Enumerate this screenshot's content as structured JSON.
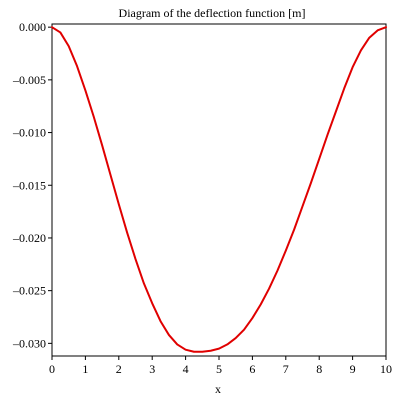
{
  "chart_data": {
    "type": "line",
    "title": "Diagram of the deflection function [m]",
    "xlabel": "x",
    "ylabel": "",
    "xlim": [
      0,
      10
    ],
    "ylim": [
      -0.0312,
      0.0003
    ],
    "x_ticks": [
      0,
      1,
      2,
      3,
      4,
      5,
      6,
      7,
      8,
      9,
      10
    ],
    "x_tick_labels": [
      "0",
      "1",
      "2",
      "3",
      "4",
      "5",
      "6",
      "7",
      "8",
      "9",
      "10"
    ],
    "y_ticks": [
      0.0,
      -0.005,
      -0.01,
      -0.015,
      -0.02,
      -0.025,
      -0.03
    ],
    "y_tick_labels": [
      "0.000",
      "–0.005",
      "–0.010",
      "–0.015",
      "–0.020",
      "–0.025",
      "–0.030"
    ],
    "grid": false,
    "legend": "none",
    "series": [
      {
        "color": "#e00000",
        "x": [
          0,
          0.25,
          0.5,
          0.75,
          1.0,
          1.25,
          1.5,
          1.75,
          2.0,
          2.25,
          2.5,
          2.75,
          3.0,
          3.25,
          3.5,
          3.75,
          4.0,
          4.25,
          4.5,
          4.75,
          5.0,
          5.25,
          5.5,
          5.75,
          6.0,
          6.25,
          6.5,
          6.75,
          7.0,
          7.25,
          7.5,
          7.75,
          8.0,
          8.25,
          8.5,
          8.75,
          9.0,
          9.25,
          9.5,
          9.75,
          10.0
        ],
        "y": [
          0.0,
          -0.0005,
          -0.0018,
          -0.0037,
          -0.006,
          -0.0085,
          -0.0112,
          -0.014,
          -0.0168,
          -0.0195,
          -0.022,
          -0.0243,
          -0.0262,
          -0.0279,
          -0.0292,
          -0.0301,
          -0.0306,
          -0.0308,
          -0.0308,
          -0.0307,
          -0.0305,
          -0.0301,
          -0.0295,
          -0.0287,
          -0.0276,
          -0.0263,
          -0.0248,
          -0.0231,
          -0.0212,
          -0.0192,
          -0.017,
          -0.0148,
          -0.0125,
          -0.0102,
          -0.008,
          -0.0058,
          -0.0038,
          -0.0022,
          -0.001,
          -0.0003,
          0.0
        ]
      }
    ]
  }
}
